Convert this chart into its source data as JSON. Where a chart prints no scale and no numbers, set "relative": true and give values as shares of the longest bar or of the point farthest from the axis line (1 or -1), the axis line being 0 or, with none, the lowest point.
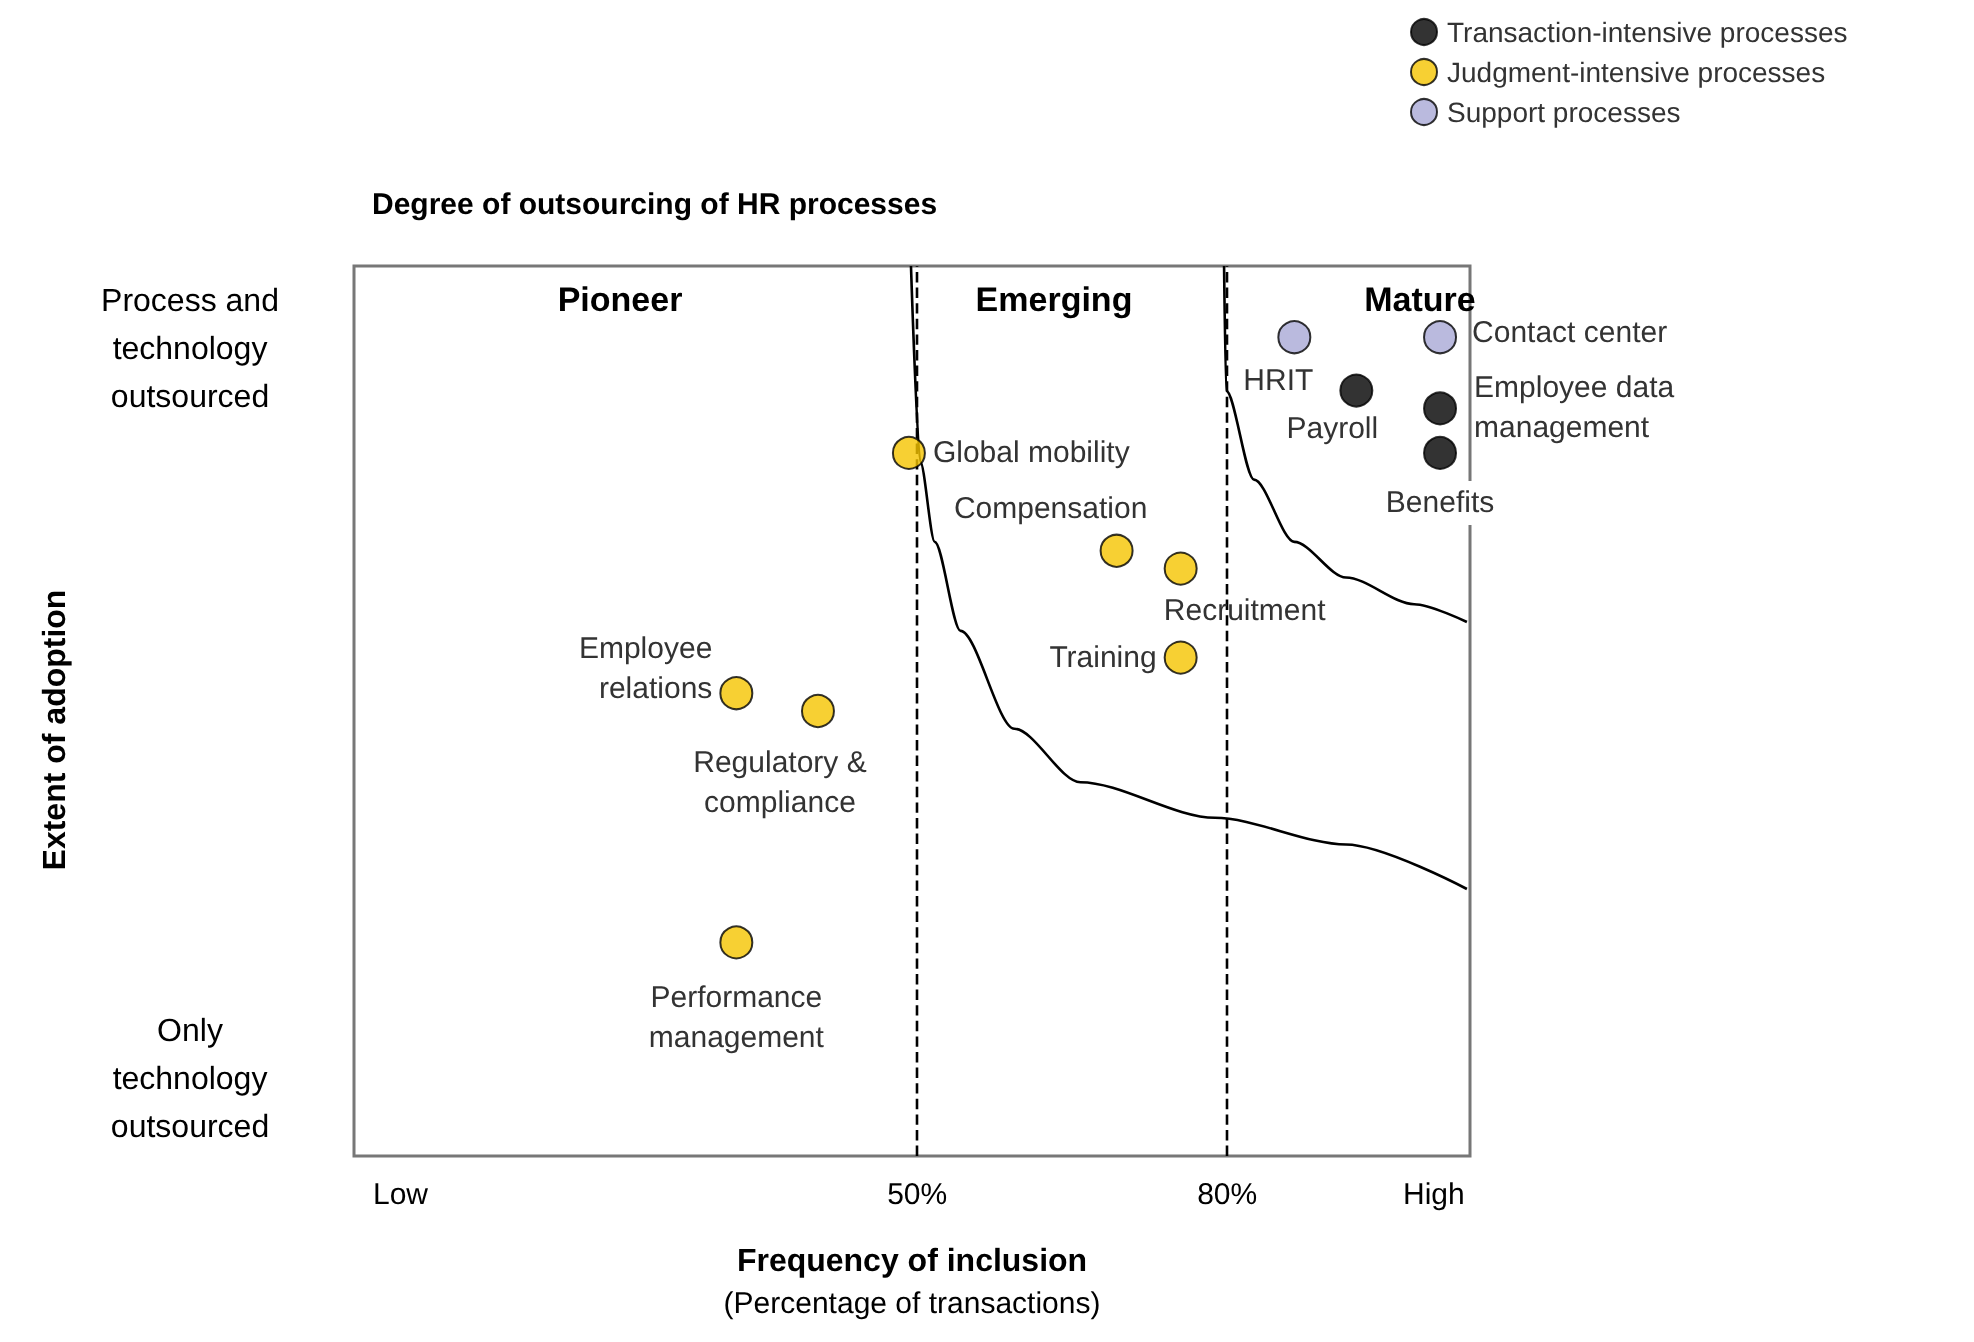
{
  "chart_data": {
    "type": "scatter",
    "title": "Degree of outsourcing of HR processes",
    "xlabel": "Frequency of inclusion\n(Percentage of transactions)",
    "xlim": [
      -4.5,
      103.5
    ],
    "xticks": [
      {
        "value": 0,
        "label": "Low"
      },
      {
        "value": 50,
        "label": "50%"
      },
      {
        "value": 80,
        "label": "80%"
      },
      {
        "value": 100,
        "label": "High"
      }
    ],
    "relative": true,
    "series": [
      {
        "name": "Transaction-intensive processes",
        "color": "#000000",
        "x": [
          92.5,
          100.6,
          100.6
        ],
        "values": [
          0.86,
          0.84,
          0.79
        ]
      },
      {
        "name": "Judgment-intensive processes",
        "color": "#f5c400",
        "x": [
          49.2,
          69.3,
          75.5,
          75.5,
          32.5,
          40.4,
          32.5
        ],
        "values": [
          0.79,
          0.68,
          0.66,
          0.56,
          0.52,
          0.5,
          0.24
        ]
      },
      {
        "name": "Support processes",
        "color": "#a9a9d6",
        "x": [
          86.5,
          100.6
        ],
        "values": [
          0.92,
          0.92
        ]
      },
      {
        "type": "line",
        "marker": "none",
        "color": "#000000",
        "x": [
          49.4,
          50.3,
          51.7,
          54.2,
          59.4,
          65.8,
          78.8,
          91.5,
          103.2
        ],
        "values": [
          1.0,
          0.78,
          0.69,
          0.59,
          0.48,
          0.42,
          0.38,
          0.35,
          0.3
        ]
      },
      {
        "type": "line",
        "marker": "none",
        "color": "#000000",
        "x": [
          79.7,
          79.9,
          82.6,
          86.5,
          91.5,
          98.1,
          103.2
        ],
        "values": [
          1.0,
          0.86,
          0.76,
          0.69,
          0.65,
          0.62,
          0.6
        ]
      }
    ],
    "ref_lines": [
      {
        "axis": "x",
        "value": 50,
        "color": "#000000",
        "line_style": "dashed"
      },
      {
        "axis": "x",
        "value": 80,
        "color": "#000000",
        "line_style": "dashed"
      }
    ],
    "annotations": [
      "Pioneer",
      "Emerging",
      "Mature",
      {
        "text": "Contact center",
        "x": 100.6,
        "y": 0.92
      },
      {
        "text": "HRIT",
        "x": 86.5,
        "y": 0.92
      },
      {
        "text": "Payroll",
        "x": 92.5,
        "y": 0.86
      },
      {
        "text": "Employee data\nmanagement",
        "x": 100.6,
        "y": 0.84
      },
      {
        "text": "Benefits",
        "x": 100.6,
        "y": 0.79
      },
      {
        "text": "Global mobility",
        "x": 49.2,
        "y": 0.79
      },
      {
        "text": "Compensation",
        "x": 69.3,
        "y": 0.68
      },
      {
        "text": "Recruitment",
        "x": 75.5,
        "y": 0.66
      },
      {
        "text": "Training",
        "x": 75.5,
        "y": 0.56
      },
      {
        "text": "Employee\nrelations",
        "x": 32.5,
        "y": 0.52
      },
      {
        "text": "Regulatory &\ncompliance",
        "x": 40.4,
        "y": 0.5
      },
      {
        "text": "Performance\nmanagement",
        "x": 32.5,
        "y": 0.24
      },
      "Process and\ntechnology\noutsourced",
      "Only\ntechnology\noutsourced",
      "Extent of adoption"
    ],
    "grid": false,
    "legend": "top right",
    "marker": "circle"
  }
}
